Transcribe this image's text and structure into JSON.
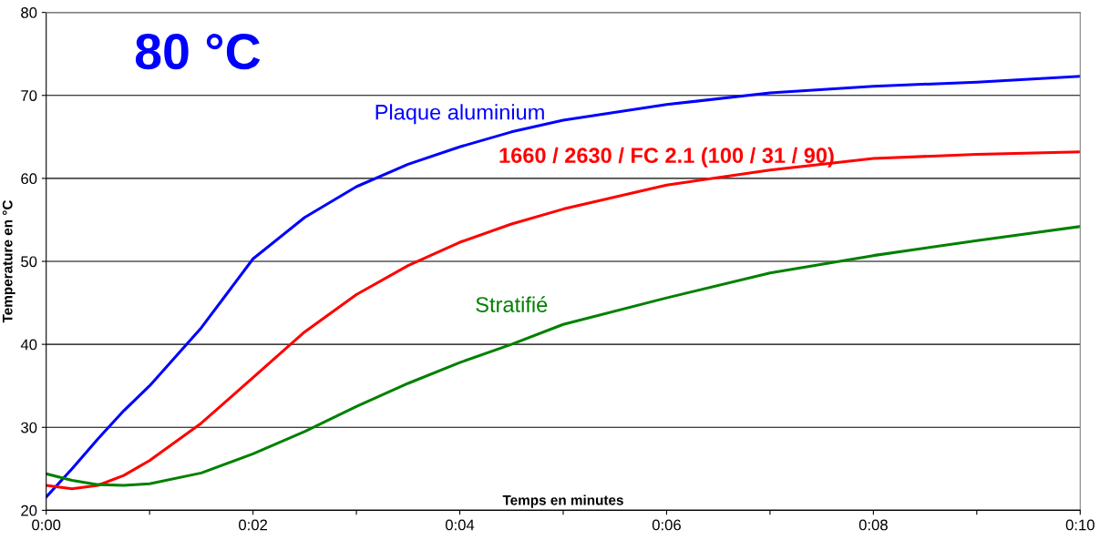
{
  "chart_data": {
    "type": "line",
    "xlabel": "Temps en minutes",
    "ylabel": "Temperature en °C",
    "annotations": [
      "80 °C"
    ],
    "xlim": [
      0,
      10
    ],
    "ylim": [
      20,
      80
    ],
    "xticks": [
      {
        "value": 0,
        "label": "0:00"
      },
      {
        "value": 1,
        "label": null
      },
      {
        "value": 2,
        "label": "0:02"
      },
      {
        "value": 3,
        "label": null
      },
      {
        "value": 4,
        "label": "0:04"
      },
      {
        "value": 5,
        "label": null
      },
      {
        "value": 6,
        "label": "0:06"
      },
      {
        "value": 7,
        "label": null
      },
      {
        "value": 8,
        "label": "0:08"
      },
      {
        "value": 9,
        "label": null
      },
      {
        "value": 10,
        "label": "0:10"
      }
    ],
    "yticks": [
      20,
      30,
      40,
      50,
      60,
      70,
      80
    ],
    "grid": "y",
    "legend": false,
    "marker": "none",
    "line_style": "solid",
    "x": [
      0,
      0.25,
      0.5,
      0.75,
      1,
      1.5,
      2,
      2.5,
      3,
      3.5,
      4,
      4.5,
      5,
      6,
      7,
      8,
      9,
      10
    ],
    "series": [
      {
        "name": "Plaque aluminium",
        "color": "#0000ff",
        "values": [
          21.6,
          25,
          28.6,
          32,
          35,
          42,
          50.3,
          55.3,
          59,
          61.7,
          63.8,
          65.6,
          67,
          68.9,
          70.3,
          71.1,
          71.6,
          72.3
        ]
      },
      {
        "name": "1660 / 2630 / FC 2.1 (100 / 31 / 90)",
        "color": "#ff0000",
        "values": [
          23,
          22.6,
          23,
          24.2,
          26,
          30.5,
          36,
          41.5,
          46,
          49.5,
          52.3,
          54.5,
          56.3,
          59.2,
          61,
          62.4,
          62.9,
          63.2
        ]
      },
      {
        "name": "Stratifié",
        "color": "#008000",
        "values": [
          24.4,
          23.6,
          23.1,
          23,
          23.2,
          24.5,
          26.8,
          29.5,
          32.5,
          35.3,
          37.8,
          40,
          42.4,
          45.6,
          48.6,
          50.7,
          52.5,
          54.2
        ]
      }
    ]
  }
}
